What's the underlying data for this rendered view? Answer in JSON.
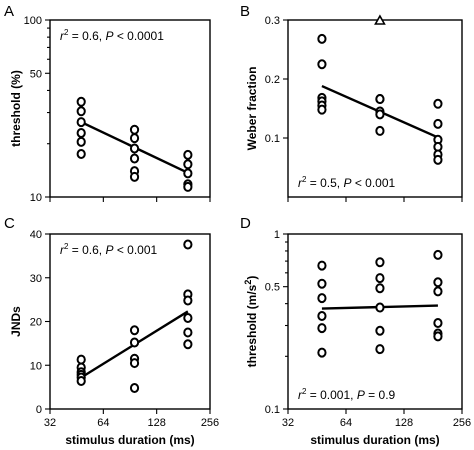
{
  "chart_data": [
    {
      "panel": "A",
      "type": "scatter",
      "ylabel": "threshold (%)",
      "xlabel": "",
      "y_scale": "log",
      "ylim": [
        10,
        100
      ],
      "y_ticks": [
        "10",
        "50",
        "100"
      ],
      "x_scale": "log2",
      "xlim": [
        32,
        256
      ],
      "x_tick_labels_shown": false,
      "annotation": {
        "r2_prefix": "r",
        "r2_rest": " = 0.6, ",
        "p_label": "P",
        "p_rest": " < 0.0001"
      },
      "points": [
        {
          "x": 48,
          "y": 34.5
        },
        {
          "x": 48,
          "y": 30.5
        },
        {
          "x": 48,
          "y": 26.5
        },
        {
          "x": 48,
          "y": 23.0
        },
        {
          "x": 48,
          "y": 20.5
        },
        {
          "x": 48,
          "y": 17.5
        },
        {
          "x": 96,
          "y": 24.0
        },
        {
          "x": 96,
          "y": 21.5
        },
        {
          "x": 96,
          "y": 18.8
        },
        {
          "x": 96,
          "y": 16.5
        },
        {
          "x": 96,
          "y": 14.0
        },
        {
          "x": 96,
          "y": 13.0
        },
        {
          "x": 192,
          "y": 17.3
        },
        {
          "x": 192,
          "y": 15.3
        },
        {
          "x": 192,
          "y": 13.6
        },
        {
          "x": 192,
          "y": 11.8
        },
        {
          "x": 192,
          "y": 11.4
        }
      ],
      "fit": [
        {
          "x": 48,
          "y": 26.5
        },
        {
          "x": 192,
          "y": 13.7
        }
      ]
    },
    {
      "panel": "B",
      "type": "scatter",
      "ylabel": "Weber fraction",
      "xlabel": "",
      "y_scale": "linear",
      "ylim": [
        0,
        0.3
      ],
      "y_ticks": [
        "0.1",
        "0.2",
        "0.3"
      ],
      "x_scale": "log2",
      "xlim": [
        32,
        256
      ],
      "x_tick_labels_shown": false,
      "annotation": {
        "r2_prefix": "r",
        "r2_rest": " = 0.5, ",
        "p_label": "P",
        "p_rest": " < 0.001"
      },
      "points": [
        {
          "x": 48,
          "y": 0.268
        },
        {
          "x": 48,
          "y": 0.225
        },
        {
          "x": 48,
          "y": 0.168
        },
        {
          "x": 48,
          "y": 0.162
        },
        {
          "x": 48,
          "y": 0.155
        },
        {
          "x": 48,
          "y": 0.148
        },
        {
          "x": 96,
          "y": 0.166
        },
        {
          "x": 96,
          "y": 0.166
        },
        {
          "x": 96,
          "y": 0.145
        },
        {
          "x": 96,
          "y": 0.14
        },
        {
          "x": 96,
          "y": 0.112
        },
        {
          "x": 192,
          "y": 0.158
        },
        {
          "x": 192,
          "y": 0.124
        },
        {
          "x": 192,
          "y": 0.097
        },
        {
          "x": 192,
          "y": 0.085
        },
        {
          "x": 192,
          "y": 0.072
        },
        {
          "x": 192,
          "y": 0.063
        }
      ],
      "outlier_triangle": {
        "x": 96,
        "y": 0.3
      },
      "fit": [
        {
          "x": 48,
          "y": 0.188
        },
        {
          "x": 192,
          "y": 0.101
        }
      ]
    },
    {
      "panel": "C",
      "type": "scatter",
      "ylabel": "JNDs",
      "xlabel": "stimulus duration (ms)",
      "y_scale": "linear",
      "ylim": [
        0,
        40
      ],
      "y_ticks": [
        "0",
        "10",
        "20",
        "30",
        "40"
      ],
      "x_scale": "log2",
      "xlim": [
        32,
        256
      ],
      "x_ticks": [
        "32",
        "64",
        "128",
        "256"
      ],
      "annotation": {
        "r2_prefix": "r",
        "r2_rest": " = 0.6, ",
        "p_label": "P",
        "p_rest": " < 0.001"
      },
      "points": [
        {
          "x": 48,
          "y": 11.3
        },
        {
          "x": 48,
          "y": 9.5
        },
        {
          "x": 48,
          "y": 8.4
        },
        {
          "x": 48,
          "y": 7.8
        },
        {
          "x": 48,
          "y": 7.2
        },
        {
          "x": 48,
          "y": 6.4
        },
        {
          "x": 96,
          "y": 18.0
        },
        {
          "x": 96,
          "y": 15.2
        },
        {
          "x": 96,
          "y": 11.5
        },
        {
          "x": 96,
          "y": 10.5
        },
        {
          "x": 96,
          "y": 4.8
        },
        {
          "x": 192,
          "y": 37.6
        },
        {
          "x": 192,
          "y": 26.2
        },
        {
          "x": 192,
          "y": 24.8
        },
        {
          "x": 192,
          "y": 20.8
        },
        {
          "x": 192,
          "y": 17.5
        },
        {
          "x": 192,
          "y": 14.8
        }
      ],
      "fit": [
        {
          "x": 48,
          "y": 7.2
        },
        {
          "x": 192,
          "y": 22.3
        }
      ]
    },
    {
      "panel": "D",
      "type": "scatter",
      "ylabel_main": "threshold (m/s",
      "ylabel_sup": "2",
      "ylabel_end": ")",
      "xlabel": "stimulus duration (ms)",
      "y_scale": "log",
      "ylim": [
        0.1,
        1
      ],
      "y_ticks": [
        "0.1",
        "0.5",
        "1"
      ],
      "x_scale": "log2",
      "xlim": [
        32,
        256
      ],
      "x_ticks": [
        "32",
        "64",
        "128",
        "256"
      ],
      "annotation": {
        "r2_prefix": "r",
        "r2_rest": " = 0.001, ",
        "p_label": "P",
        "p_rest": " = 0.9"
      },
      "points": [
        {
          "x": 48,
          "y": 0.66
        },
        {
          "x": 48,
          "y": 0.52
        },
        {
          "x": 48,
          "y": 0.43
        },
        {
          "x": 48,
          "y": 0.34
        },
        {
          "x": 48,
          "y": 0.29
        },
        {
          "x": 48,
          "y": 0.21
        },
        {
          "x": 96,
          "y": 0.69
        },
        {
          "x": 96,
          "y": 0.56
        },
        {
          "x": 96,
          "y": 0.49
        },
        {
          "x": 96,
          "y": 0.38
        },
        {
          "x": 96,
          "y": 0.28
        },
        {
          "x": 96,
          "y": 0.22
        },
        {
          "x": 192,
          "y": 0.76
        },
        {
          "x": 192,
          "y": 0.53
        },
        {
          "x": 192,
          "y": 0.47
        },
        {
          "x": 192,
          "y": 0.31
        },
        {
          "x": 192,
          "y": 0.27
        },
        {
          "x": 192,
          "y": 0.26
        }
      ],
      "fit": [
        {
          "x": 48,
          "y": 0.375
        },
        {
          "x": 192,
          "y": 0.39
        }
      ]
    }
  ]
}
